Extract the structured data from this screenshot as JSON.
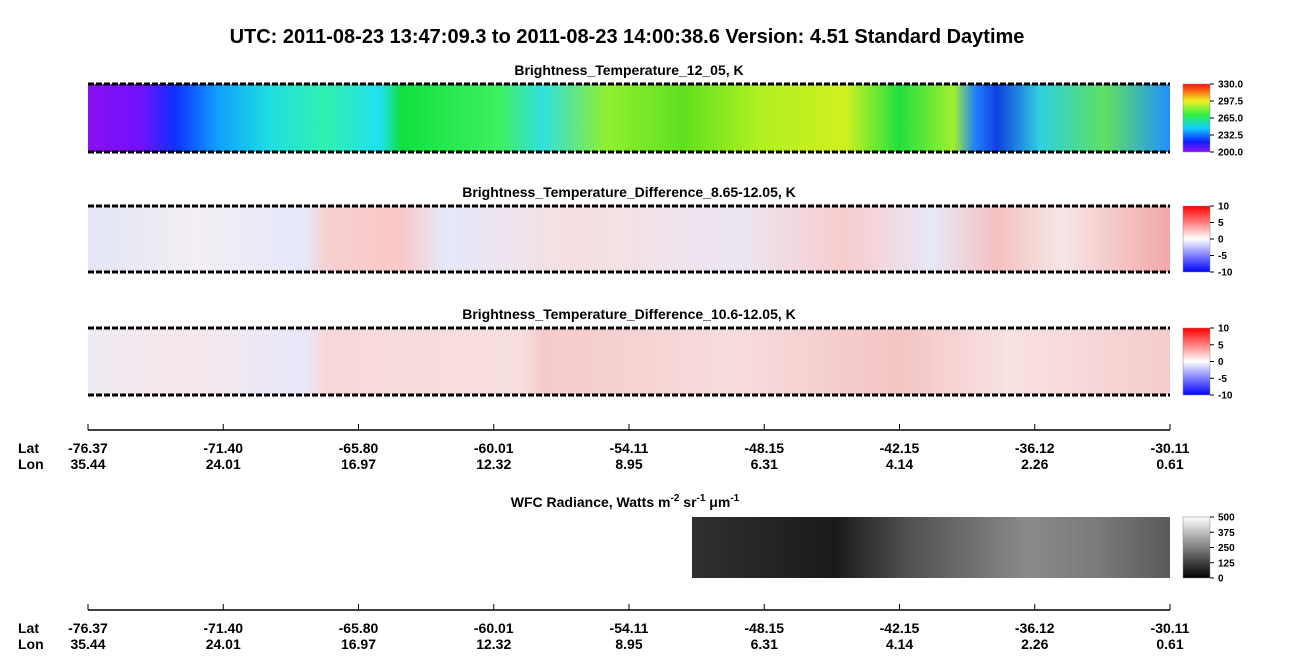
{
  "title": "UTC:  2011-08-23   13:47:09.3  to  2011-08-23   14:00:38.6    Version: 4.51  Standard Daytime",
  "panels": [
    {
      "title": "Brightness_Temperature_12_05, K",
      "clim": [
        200,
        330
      ],
      "ticks": [
        {
          "value": 330,
          "label": "330.0"
        },
        {
          "value": 297.5,
          "label": "297.5"
        },
        {
          "value": 265,
          "label": "265.0"
        },
        {
          "value": 232.5,
          "label": "232.5"
        },
        {
          "value": 200,
          "label": "200.0"
        }
      ]
    },
    {
      "title": "Brightness_Temperature_Difference_8.65-12.05, K",
      "clim": [
        -10,
        10
      ],
      "ticks": [
        10,
        5,
        0,
        -5,
        -10
      ]
    },
    {
      "title": "Brightness_Temperature_Difference_10.6-12.05, K",
      "clim": [
        -10,
        10
      ],
      "ticks": [
        10,
        5,
        0,
        -5,
        -10
      ]
    }
  ],
  "wfc": {
    "title_parts": [
      "WFC Radiance, Watts m",
      "-2",
      " sr",
      "-1",
      " μm",
      "-1"
    ],
    "clim": [
      0,
      500
    ],
    "ticks": [
      500,
      375,
      250,
      125,
      0
    ]
  },
  "axis": {
    "row_labels": [
      "Lat",
      "Lon"
    ],
    "lat": [
      -76.37,
      -71.4,
      -65.8,
      -60.01,
      -54.11,
      -48.15,
      -42.15,
      -36.12,
      -30.11
    ],
    "lat_labels": [
      "-76.37",
      "-71.40",
      "-65.80",
      "-60.01",
      "-54.11",
      "-48.15",
      "-42.15",
      "-36.12",
      "-30.11"
    ],
    "lon": [
      35.44,
      24.01,
      16.97,
      12.32,
      8.95,
      6.31,
      4.14,
      2.26,
      0.61
    ]
  }
}
